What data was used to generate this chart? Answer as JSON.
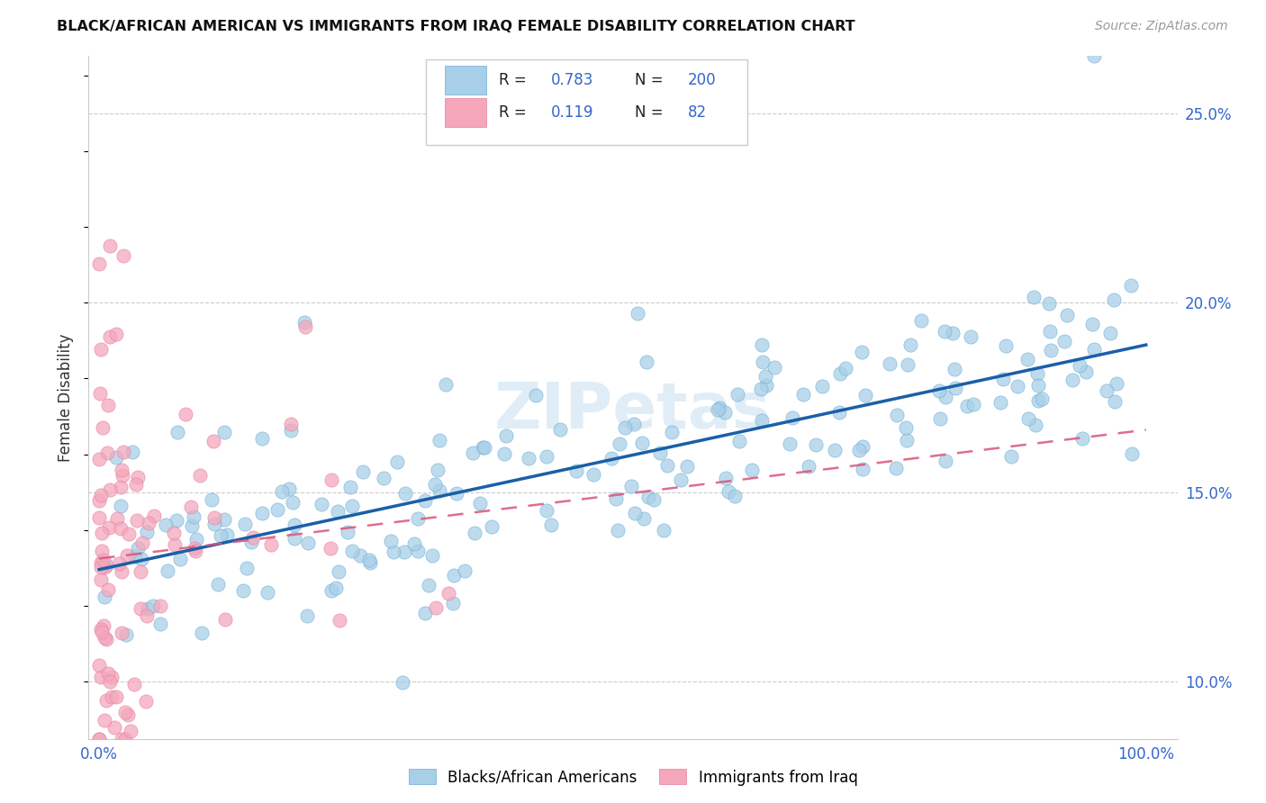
{
  "title": "BLACK/AFRICAN AMERICAN VS IMMIGRANTS FROM IRAQ FEMALE DISABILITY CORRELATION CHART",
  "source": "Source: ZipAtlas.com",
  "ylabel": "Female Disability",
  "ytick_values": [
    0.1,
    0.15,
    0.2,
    0.25
  ],
  "ytick_labels": [
    "10.0%",
    "15.0%",
    "20.0%",
    "25.0%"
  ],
  "xtick_values": [
    0.0,
    0.25,
    0.5,
    0.75,
    1.0
  ],
  "xtick_labels": [
    "0.0%",
    "",
    "",
    "",
    "100.0%"
  ],
  "legend_blue_r": "0.783",
  "legend_blue_n": "200",
  "legend_pink_r": "0.119",
  "legend_pink_n": "82",
  "legend_label1": "Blacks/African Americans",
  "legend_label2": "Immigrants from Iraq",
  "blue_color": "#a8cfe8",
  "pink_color": "#f4a7bb",
  "blue_edge": "#6aadd5",
  "pink_edge": "#e87da0",
  "trendline_blue": "#1a5fa8",
  "trendline_pink": "#d9547a",
  "axis_color": "#cccccc",
  "text_color": "#333333",
  "tick_color": "#3366cc",
  "watermark_color": "#c8dff0",
  "watermark": "ZIPetas",
  "xlim": [
    -0.01,
    1.03
  ],
  "ylim": [
    0.085,
    0.265
  ]
}
